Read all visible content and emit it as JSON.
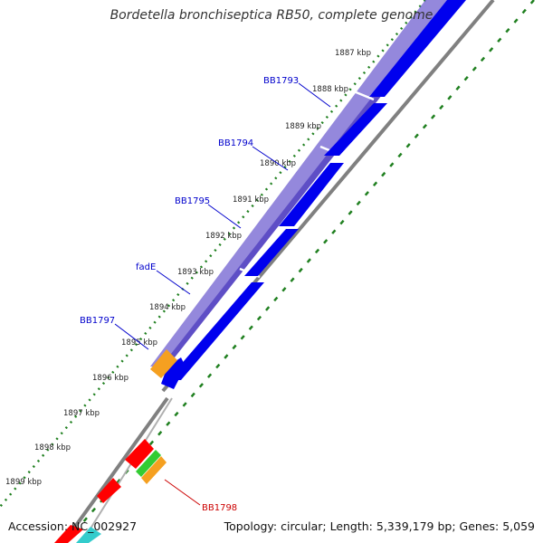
{
  "title": "Bordetella bronchiseptica RB50, complete genome",
  "footer": {
    "accession": "Accession: NC_002927",
    "topology": "Topology: circular; Length: 5,339,179 bp; Genes: 5,059"
  },
  "ticks": [
    {
      "label": "1887 kbp"
    },
    {
      "label": "1888 kbp"
    },
    {
      "label": "1889 kbp"
    },
    {
      "label": "1890 kbp"
    },
    {
      "label": "1891 kbp"
    },
    {
      "label": "1892 kbp"
    },
    {
      "label": "1893 kbp"
    },
    {
      "label": "1894 kbp"
    },
    {
      "label": "1895 kbp"
    },
    {
      "label": "1896 kbp"
    },
    {
      "label": "1897 kbp"
    },
    {
      "label": "1898 kbp"
    },
    {
      "label": "1899 kbp"
    }
  ],
  "genes": [
    {
      "label": "BB1793",
      "color": "#0000cc"
    },
    {
      "label": "BB1794",
      "color": "#0000cc"
    },
    {
      "label": "BB1795",
      "color": "#0000cc"
    },
    {
      "label": "fadE",
      "color": "#0000cc"
    },
    {
      "label": "BB1797",
      "color": "#0000cc"
    },
    {
      "label": "BB1798",
      "color": "#cc0000"
    }
  ],
  "colors": {
    "cds": "#0000ee",
    "cds_band": "#7060d0",
    "rna_orange": "#f5a020",
    "red_gene": "#ff0000",
    "green_gene": "#33cc33",
    "cyan_gene": "#33cccc",
    "backbone": "#808080",
    "dots": "#208020"
  }
}
